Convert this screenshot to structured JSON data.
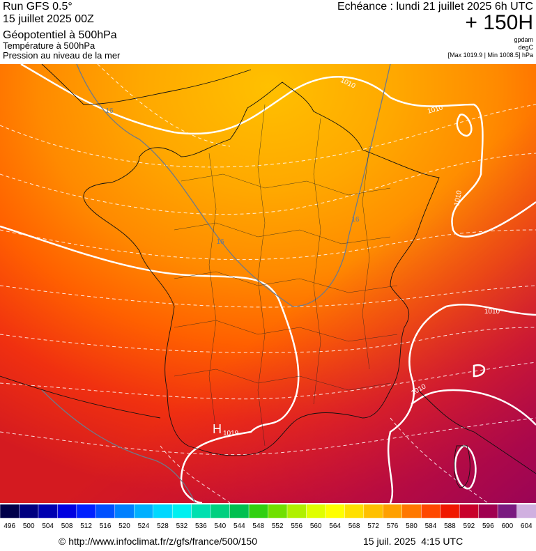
{
  "header": {
    "left": [
      "Run GFS 0.5°",
      "15 juillet 2025 00Z",
      "Géopotentiel à 500hPa",
      "Température à 500hPa",
      "Pression au niveau de la mer"
    ],
    "right": {
      "run": "Echéance : lundi 21 juillet 2025 6h UTC",
      "lead": "+ 150H",
      "units": [
        "gpdam",
        "degC",
        "[Max 1019.9 | Min 1008.5] hPa"
      ]
    }
  },
  "map": {
    "isobar_labels": [
      "1010",
      "1010",
      "1010",
      "1010",
      "1010"
    ],
    "temperature_labels": [
      "16",
      "16",
      "16"
    ],
    "high": {
      "symbol": "H",
      "value": "1019"
    }
  },
  "legend": {
    "labels": [
      496,
      500,
      504,
      508,
      512,
      516,
      520,
      524,
      528,
      532,
      536,
      540,
      544,
      548,
      552,
      556,
      560,
      564,
      568,
      572,
      576,
      580,
      584,
      588,
      592,
      596,
      600,
      604
    ],
    "colors": [
      "#00004a",
      "#000080",
      "#0000b0",
      "#0000e0",
      "#0020ff",
      "#0050ff",
      "#0080ff",
      "#00b0ff",
      "#00d8ff",
      "#00f0f0",
      "#00e0b0",
      "#00d080",
      "#00c050",
      "#30d010",
      "#70e000",
      "#b0f000",
      "#e0ff00",
      "#ffff00",
      "#ffe000",
      "#ffc000",
      "#ffa000",
      "#ff7800",
      "#ff4800",
      "#f01800",
      "#c8002a",
      "#a00050",
      "#7a1a80",
      "#d0b0e0"
    ]
  },
  "footer": {
    "url": "© http://www.infoclimat.fr/z/gfs/france/500/150",
    "date": "15 juil. 2025  4:15 UTC"
  }
}
